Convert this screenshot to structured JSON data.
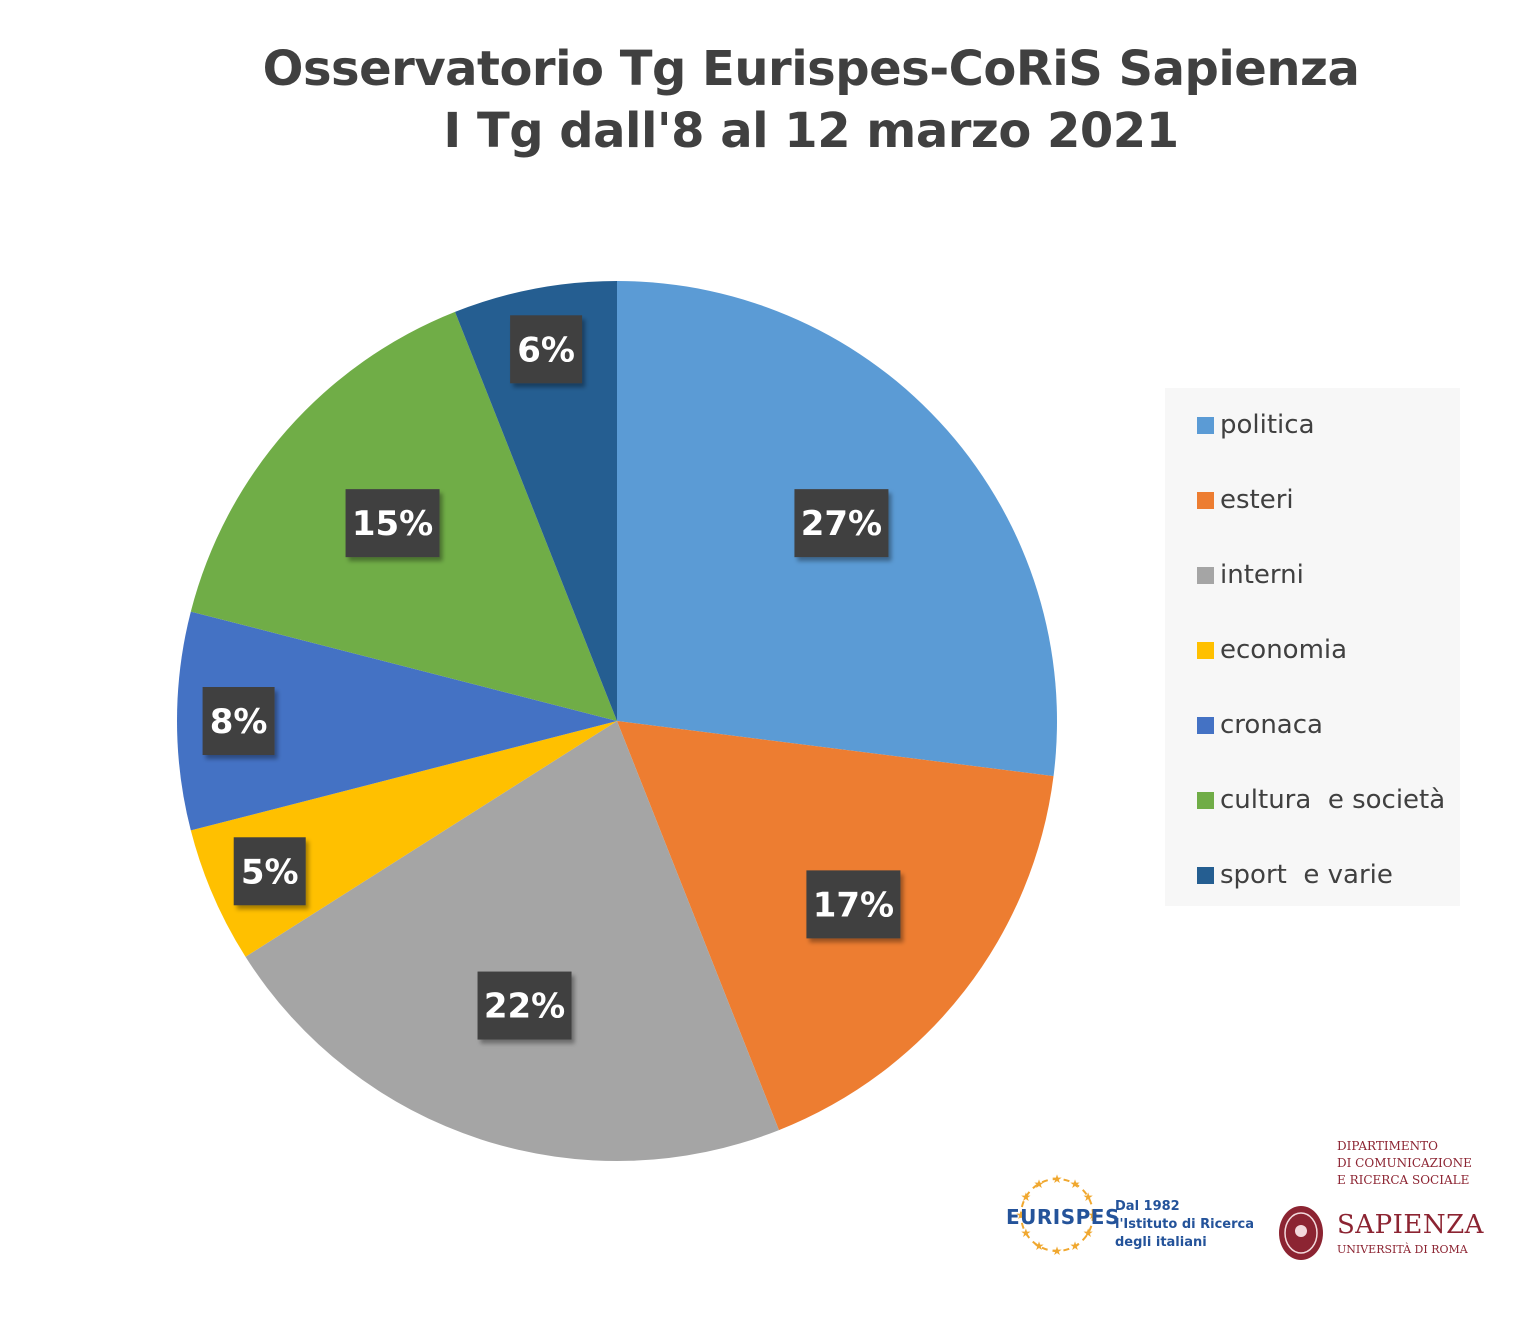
{
  "chart_data": {
    "type": "pie",
    "title_lines": [
      "Osservatorio Tg Eurispes-CoRiS Sapienza",
      "I Tg dall'8 al 12 marzo 2021"
    ],
    "unit": "%",
    "slices": [
      {
        "label": "politica",
        "value": 27,
        "color": "#5b9bd5"
      },
      {
        "label": "esteri",
        "value": 17,
        "color": "#ed7d31"
      },
      {
        "label": "interni",
        "value": 22,
        "color": "#a5a5a5"
      },
      {
        "label": "economia",
        "value": 5,
        "color": "#ffc000"
      },
      {
        "label": "cronaca",
        "value": 8,
        "color": "#4472c4"
      },
      {
        "label": "cultura  e società",
        "value": 15,
        "color": "#70ad47"
      },
      {
        "label": "sport  e varie",
        "value": 6,
        "color": "#255e91"
      }
    ],
    "data_labels": [
      "27%",
      "17%",
      "22%",
      "5%",
      "8%",
      "15%",
      "6%"
    ],
    "legend_position": "right"
  },
  "logos": {
    "eurispes_name": "EURISPES",
    "eurispes_tagline": [
      "Dal 1982",
      "l'Istituto di Ricerca",
      "degli italiani"
    ],
    "dept_lines": [
      "DIPARTIMENTO",
      "DI COMUNICAZIONE",
      "E RICERCA SOCIALE"
    ],
    "sapienza_name": "SAPIENZA",
    "sapienza_sub": "UNIVERSITÀ DI ROMA"
  }
}
